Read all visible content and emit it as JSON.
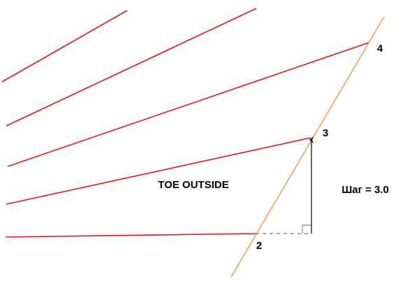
{
  "annotations": {
    "region_label": "TOE OUTSIDE",
    "step_label": "Шаг = 3.0"
  },
  "points": [
    {
      "label": "2"
    },
    {
      "label": "3"
    },
    {
      "label": "4"
    }
  ]
}
